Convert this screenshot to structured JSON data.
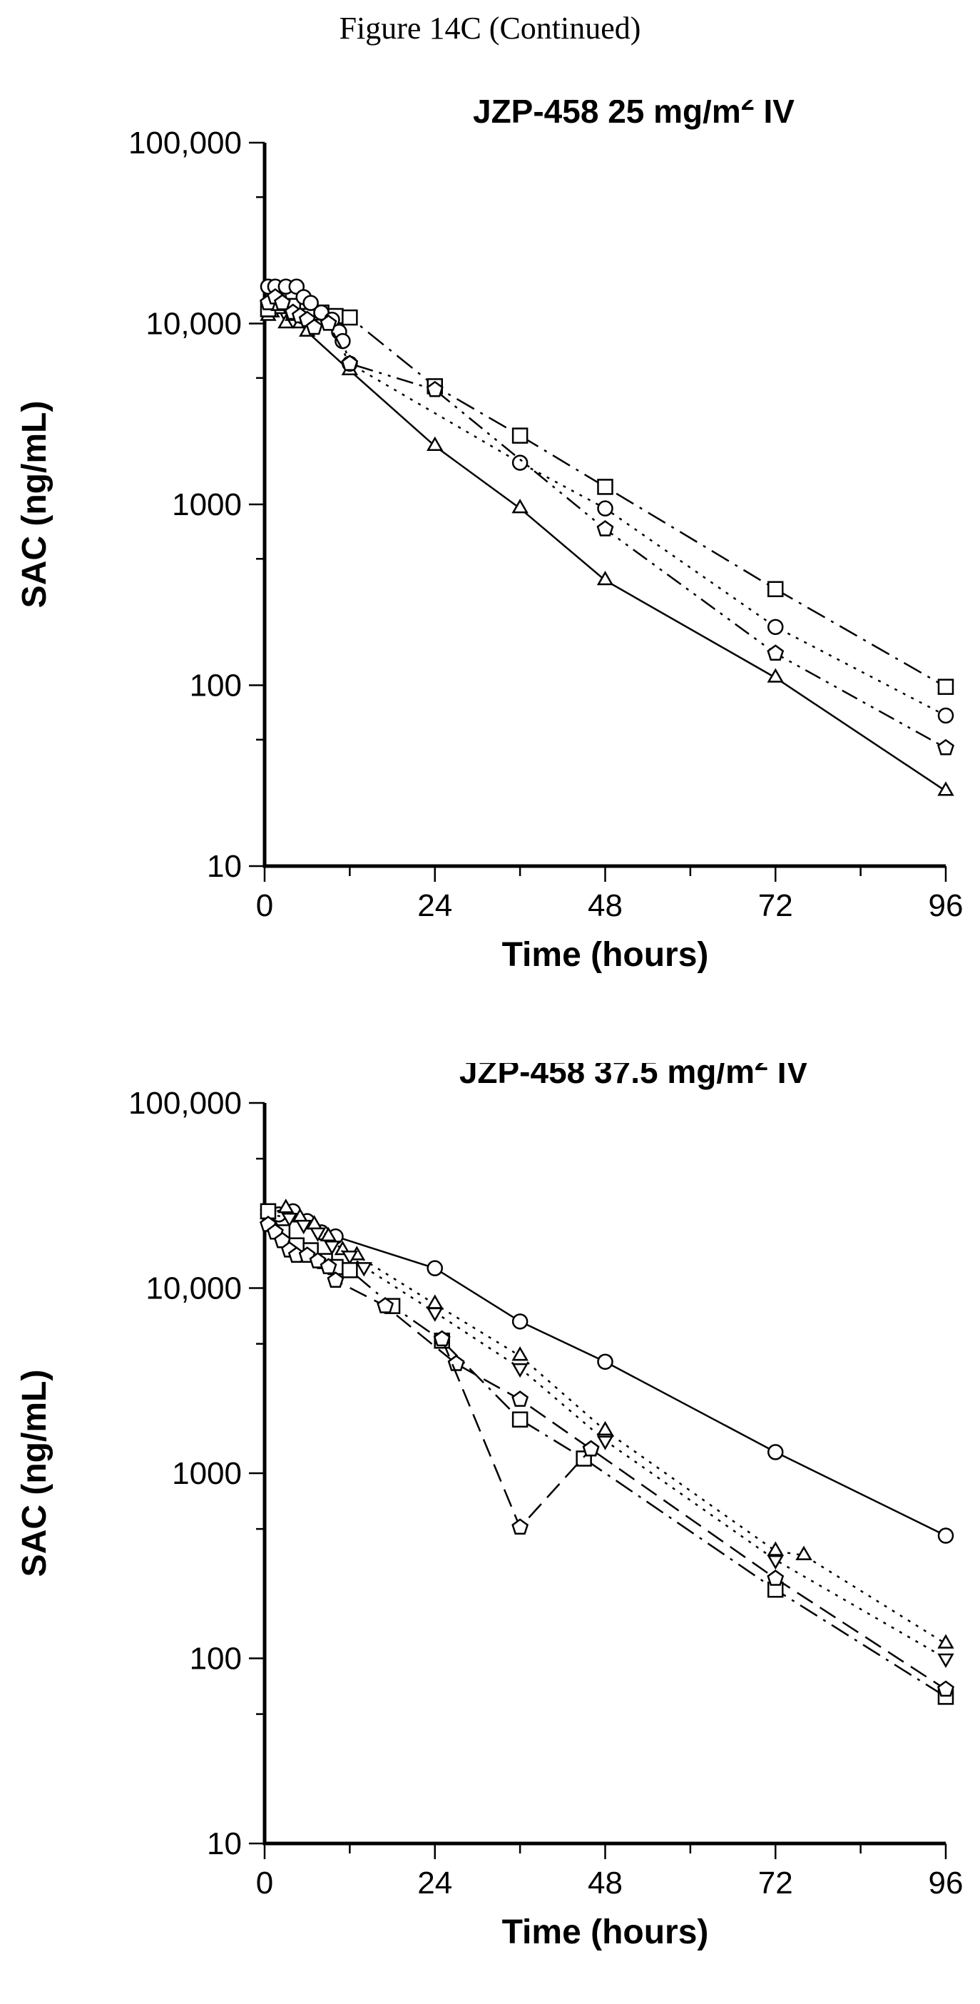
{
  "caption": "Figure 14C (Continued)",
  "chart_data": [
    {
      "type": "line",
      "title": "JZP-458 25 mg/m",
      "title_sup": "2",
      "title_tail": " IV",
      "xlabel": "Time (hours)",
      "ylabel": "SAC (ng/mL)",
      "yscale": "log",
      "xlim": [
        0,
        96
      ],
      "ylim": [
        10,
        100000
      ],
      "xticks": [
        0,
        24,
        48,
        72,
        96
      ],
      "xtick_labels": [
        "0",
        "24",
        "48",
        "72",
        "96"
      ],
      "yticks": [
        10,
        100,
        1000,
        10000,
        100000
      ],
      "ytick_labels": [
        "10",
        "100",
        "1000",
        "10,000",
        "100,000"
      ],
      "grid": false,
      "series": [
        {
          "marker": "triangle",
          "dash": "solid",
          "x": [
            0.5,
            1,
            2,
            3,
            4,
            5,
            6,
            12,
            24,
            36,
            48,
            72,
            96
          ],
          "y": [
            11000,
            11500,
            12000,
            10000,
            11000,
            10000,
            9000,
            5500,
            2100,
            950,
            380,
            110,
            26
          ]
        },
        {
          "marker": "square",
          "dash": "dash-dot",
          "x": [
            0.5,
            2,
            4,
            6,
            8,
            10,
            12,
            24,
            36,
            48,
            72,
            96
          ],
          "y": [
            12000,
            13000,
            12500,
            11000,
            11500,
            11000,
            10800,
            4500,
            2400,
            1250,
            340,
            98
          ]
        },
        {
          "marker": "circle",
          "dash": "dotted",
          "x": [
            0.5,
            1.5,
            3,
            4.5,
            5.5,
            6.5,
            8,
            9.5,
            10.5,
            11,
            12,
            36,
            48,
            72,
            96
          ],
          "y": [
            16000,
            16000,
            16000,
            16000,
            14000,
            13000,
            11500,
            10500,
            9000,
            8000,
            6000,
            1700,
            950,
            210,
            68
          ]
        },
        {
          "marker": "pentagon",
          "dash": "dash-dot-dot",
          "x": [
            0.5,
            1.5,
            2.5,
            4,
            5,
            6,
            7,
            9,
            12,
            24,
            48,
            72,
            96
          ],
          "y": [
            13000,
            14000,
            13000,
            11500,
            11000,
            10500,
            9500,
            10000,
            6000,
            4300,
            730,
            150,
            45
          ]
        }
      ]
    },
    {
      "type": "line",
      "title": "JZP-458 37.5 mg/m",
      "title_sup": "2",
      "title_tail": " IV",
      "xlabel": "Time (hours)",
      "ylabel": "SAC (ng/mL)",
      "yscale": "log",
      "xlim": [
        0,
        96
      ],
      "ylim": [
        10,
        100000
      ],
      "xticks": [
        0,
        24,
        48,
        72,
        96
      ],
      "xtick_labels": [
        "0",
        "24",
        "48",
        "72",
        "96"
      ],
      "yticks": [
        10,
        100,
        1000,
        10000,
        100000
      ],
      "ytick_labels": [
        "10",
        "100",
        "1000",
        "10,000",
        "100,000"
      ],
      "grid": false,
      "series": [
        {
          "marker": "circle",
          "dash": "solid",
          "x": [
            0.5,
            2,
            4,
            6,
            8,
            10,
            24,
            36,
            48,
            72,
            96
          ],
          "y": [
            25000,
            25000,
            26000,
            23000,
            20000,
            19000,
            12800,
            6600,
            4000,
            1300,
            460
          ]
        },
        {
          "marker": "triangle",
          "dash": "dotted",
          "x": [
            0.5,
            3,
            5,
            7,
            9,
            11,
            13,
            24,
            36,
            48,
            72,
            76,
            96
          ],
          "y": [
            25000,
            27000,
            24000,
            22000,
            19000,
            16000,
            15000,
            8200,
            4300,
            1700,
            380,
            360,
            120
          ]
        },
        {
          "marker": "triangle-down",
          "dash": "dotted",
          "x": [
            0.5,
            3.5,
            5.5,
            7.5,
            9.5,
            12,
            14,
            24,
            36,
            48,
            72,
            96
          ],
          "y": [
            25000,
            24000,
            22000,
            20000,
            17000,
            15000,
            13000,
            7400,
            3700,
            1500,
            340,
            100
          ]
        },
        {
          "marker": "square",
          "dash": "dash-dot",
          "x": [
            0.5,
            2.5,
            4.5,
            6.5,
            8.5,
            10,
            12,
            18,
            25,
            36,
            45,
            72,
            96
          ],
          "y": [
            26000,
            20000,
            17000,
            16000,
            14000,
            13000,
            12500,
            8000,
            5200,
            1950,
            1200,
            235,
            62
          ]
        },
        {
          "marker": "pentagon",
          "dash": "dashed",
          "x": [
            0.5,
            1.5,
            2.5,
            3.5,
            4.5,
            6,
            7.5,
            9,
            10,
            17,
            27,
            36,
            46,
            72,
            96
          ],
          "y": [
            22000,
            20000,
            18000,
            16000,
            15000,
            15000,
            14000,
            13000,
            11000,
            8000,
            3900,
            2500,
            1350,
            270,
            68
          ]
        },
        {
          "marker": "pentagon-low",
          "dash": "dashed",
          "x": [
            25,
            36,
            46
          ],
          "y": [
            5300,
            510,
            1350
          ]
        }
      ]
    }
  ]
}
